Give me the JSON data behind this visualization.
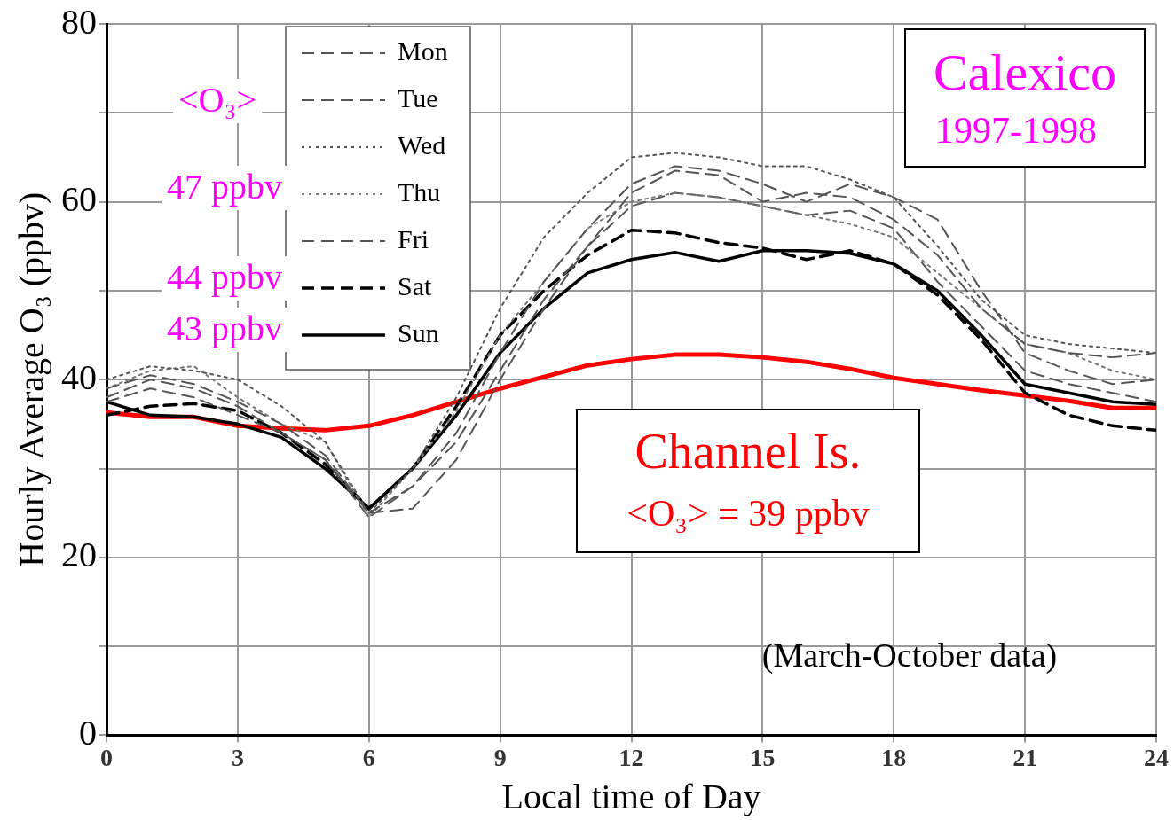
{
  "chart_data": {
    "type": "line",
    "title": "Calexico",
    "subtitle": "1997-1998",
    "xlabel": "Local time of Day",
    "ylabel": "Hourly Average O₃ (ppbv)",
    "legend": "top left",
    "grid": true,
    "marker": "none",
    "x": [
      0,
      1,
      2,
      3,
      4,
      5,
      6,
      7,
      8,
      9,
      10,
      11,
      12,
      13,
      14,
      15,
      16,
      17,
      18,
      19,
      20,
      21,
      22,
      23,
      24
    ],
    "xlim": [
      0,
      24
    ],
    "xticks": [
      0,
      3,
      6,
      9,
      12,
      15,
      18,
      21,
      24
    ],
    "ylim": [
      0,
      80
    ],
    "yticks": [
      0,
      {
        "value": 10,
        "label": null
      },
      20,
      {
        "value": 30,
        "label": null
      },
      40,
      {
        "value": 50,
        "label": null
      },
      60,
      {
        "value": 70,
        "label": null
      },
      80
    ],
    "series": [
      {
        "name": "Mon",
        "color": "#555555",
        "line_style": "dashed",
        "values": [
          38,
          40,
          39,
          37,
          34,
          31,
          25,
          25.5,
          31,
          40,
          48,
          55,
          61,
          63.5,
          63,
          60,
          61,
          60.5,
          58,
          54,
          48,
          44,
          43,
          42.5,
          43
        ]
      },
      {
        "name": "Tue",
        "color": "#555555",
        "line_style": "dashed",
        "values": [
          39,
          40.5,
          39.5,
          37.5,
          35,
          31.5,
          25,
          28,
          34,
          43,
          51,
          57,
          62,
          64,
          63.5,
          62,
          60,
          62,
          60.5,
          58,
          50,
          43,
          41,
          39.5,
          40
        ]
      },
      {
        "name": "Wed",
        "color": "#555555",
        "line_style": "dotted",
        "values": [
          40,
          41.5,
          41,
          40,
          37,
          33,
          25,
          30,
          38,
          48,
          56,
          61,
          65,
          65.5,
          65,
          64,
          64,
          62.5,
          60.5,
          55,
          49,
          45,
          44,
          43.5,
          43
        ]
      },
      {
        "name": "Thu",
        "color": "#777777",
        "line_style": "dotted",
        "values": [
          39,
          41,
          41.5,
          38,
          35,
          33,
          24.5,
          30,
          36.5,
          45,
          51,
          57,
          60,
          61,
          60.5,
          59.5,
          58.5,
          57.5,
          56,
          52,
          48,
          44,
          43,
          41,
          40
        ]
      },
      {
        "name": "Fri",
        "color": "#555555",
        "line_style": "dashed",
        "values": [
          37.5,
          39,
          38,
          36,
          34,
          31,
          24.5,
          28,
          33,
          41,
          49,
          55,
          59.5,
          61,
          60.5,
          59.5,
          58.5,
          59,
          57,
          51,
          46,
          41,
          39.5,
          38.5,
          37.5
        ]
      },
      {
        "name": "Sat",
        "color": "#000000",
        "line_style": "dashed",
        "values": [
          36,
          37,
          37.3,
          36.5,
          34,
          30.5,
          25.5,
          30,
          37,
          45,
          50,
          54,
          56.8,
          56.5,
          55.4,
          54.8,
          53.5,
          54.5,
          53,
          49.5,
          44.5,
          38.5,
          36,
          34.8,
          34.3
        ]
      },
      {
        "name": "Sun",
        "color": "#000000",
        "line_style": "solid",
        "values": [
          37.5,
          36,
          35.8,
          35,
          33.5,
          30,
          25.5,
          30,
          36,
          43,
          48,
          52,
          53.5,
          54.3,
          53.3,
          54.5,
          54.5,
          54.2,
          53,
          50,
          45,
          39.5,
          38.5,
          37.5,
          37.2
        ]
      },
      {
        "name": "Channel Is.",
        "color": "#ff0000",
        "line_style": "solid",
        "values": [
          36.3,
          35.8,
          35.8,
          34.8,
          34.5,
          34.3,
          34.8,
          36,
          37.5,
          39,
          40.3,
          41.6,
          42.3,
          42.8,
          42.8,
          42.5,
          42,
          41.2,
          40.2,
          39.5,
          38.8,
          38.2,
          37.6,
          36.8,
          36.8
        ]
      }
    ],
    "annotations": [
      "<O₃> = 39 ppbv",
      "<O₃>",
      "47 ppbv",
      "44 ppbv",
      "43 ppbv",
      "(March-October data)"
    ]
  }
}
